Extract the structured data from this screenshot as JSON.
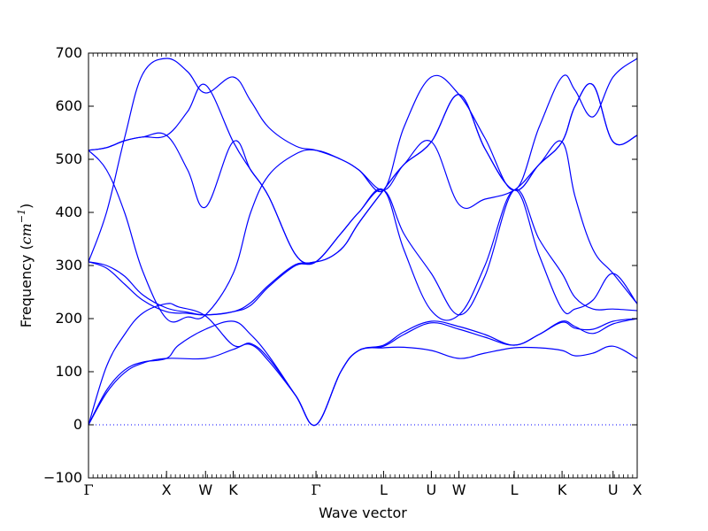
{
  "chart_data": {
    "type": "line",
    "xlabel": "Wave vector",
    "ylabel_prefix": "Frequency (",
    "ylabel_unit": "cm",
    "ylabel_exp": "−1",
    "ylabel_suffix": ")",
    "ylim": [
      -100,
      700
    ],
    "yticks": [
      -100,
      0,
      100,
      200,
      300,
      400,
      500,
      600,
      700
    ],
    "ytick_labels": [
      "−100",
      "0",
      "100",
      "200",
      "300",
      "400",
      "500",
      "600",
      "700"
    ],
    "xlim": [
      0,
      6.09
    ],
    "high_symmetry_points": [
      {
        "label": "Γ",
        "x": 0
      },
      {
        "label": "X",
        "x": 0.866
      },
      {
        "label": "W",
        "x": 1.299
      },
      {
        "label": "K",
        "x": 1.606
      },
      {
        "label": "Γ",
        "x": 2.525
      },
      {
        "label": "L",
        "x": 3.275
      },
      {
        "label": "U",
        "x": 3.805
      },
      {
        "label": "W",
        "x": 4.112
      },
      {
        "label": "L",
        "x": 4.725
      },
      {
        "label": "K",
        "x": 5.256
      },
      {
        "label": "U",
        "x": 5.822
      },
      {
        "label": "X",
        "x": 6.09
      }
    ],
    "zero_line": 0,
    "line_color": "#0000ff",
    "series": [
      {
        "values": [
          [
            0,
            0
          ],
          [
            0.2,
            60
          ],
          [
            0.4,
            98
          ],
          [
            0.6,
            116
          ],
          [
            0.866,
            125
          ],
          [
            1.299,
            125
          ],
          [
            1.606,
            142
          ],
          [
            1.8,
            151
          ],
          [
            2.0,
            120
          ],
          [
            2.3,
            55
          ],
          [
            2.525,
            0
          ],
          [
            2.8,
            100
          ],
          [
            3.0,
            140
          ],
          [
            3.275,
            145
          ],
          [
            3.5,
            146
          ],
          [
            3.805,
            140
          ],
          [
            4.112,
            125
          ],
          [
            4.4,
            135
          ],
          [
            4.725,
            145
          ],
          [
            5.0,
            145
          ],
          [
            5.256,
            140
          ],
          [
            5.4,
            130
          ],
          [
            5.6,
            135
          ],
          [
            5.822,
            148
          ],
          [
            6.09,
            125
          ]
        ]
      },
      {
        "values": [
          [
            0,
            0
          ],
          [
            0.2,
            65
          ],
          [
            0.4,
            103
          ],
          [
            0.6,
            118
          ],
          [
            0.866,
            125
          ],
          [
            1.0,
            150
          ],
          [
            1.299,
            180
          ],
          [
            1.606,
            195
          ],
          [
            1.8,
            170
          ],
          [
            2.0,
            130
          ],
          [
            2.3,
            55
          ],
          [
            2.525,
            0
          ],
          [
            2.8,
            100
          ],
          [
            3.0,
            140
          ],
          [
            3.275,
            148
          ],
          [
            3.5,
            170
          ],
          [
            3.805,
            192
          ],
          [
            4.112,
            180
          ],
          [
            4.4,
            165
          ],
          [
            4.725,
            150
          ],
          [
            5.0,
            170
          ],
          [
            5.256,
            195
          ],
          [
            5.4,
            185
          ],
          [
            5.6,
            172
          ],
          [
            5.822,
            190
          ],
          [
            6.09,
            200
          ]
        ]
      },
      {
        "values": [
          [
            0,
            0
          ],
          [
            0.2,
            110
          ],
          [
            0.4,
            170
          ],
          [
            0.6,
            210
          ],
          [
            0.866,
            228
          ],
          [
            1.0,
            222
          ],
          [
            1.299,
            205
          ],
          [
            1.606,
            150
          ],
          [
            1.8,
            153
          ],
          [
            2.0,
            125
          ],
          [
            2.3,
            55
          ],
          [
            2.525,
            0
          ],
          [
            2.8,
            100
          ],
          [
            3.0,
            140
          ],
          [
            3.275,
            150
          ],
          [
            3.5,
            175
          ],
          [
            3.805,
            195
          ],
          [
            4.112,
            185
          ],
          [
            4.4,
            170
          ],
          [
            4.725,
            150
          ],
          [
            5.0,
            170
          ],
          [
            5.256,
            193
          ],
          [
            5.4,
            182
          ],
          [
            5.6,
            180
          ],
          [
            5.822,
            195
          ],
          [
            6.09,
            200
          ]
        ]
      },
      {
        "values": [
          [
            0,
            307
          ],
          [
            0.2,
            295
          ],
          [
            0.4,
            265
          ],
          [
            0.6,
            235
          ],
          [
            0.866,
            213
          ],
          [
            1.1,
            210
          ],
          [
            1.299,
            207
          ],
          [
            1.606,
            213
          ],
          [
            1.8,
            225
          ],
          [
            2.0,
            260
          ],
          [
            2.3,
            300
          ],
          [
            2.525,
            307
          ],
          [
            2.8,
            360
          ],
          [
            3.0,
            400
          ],
          [
            3.275,
            442
          ],
          [
            3.5,
            360
          ],
          [
            3.805,
            285
          ],
          [
            4.112,
            207
          ],
          [
            4.4,
            280
          ],
          [
            4.725,
            442
          ],
          [
            5.0,
            350
          ],
          [
            5.256,
            285
          ],
          [
            5.4,
            240
          ],
          [
            5.6,
            218
          ],
          [
            5.822,
            218
          ],
          [
            6.09,
            215
          ]
        ]
      },
      {
        "values": [
          [
            0,
            307
          ],
          [
            0.2,
            300
          ],
          [
            0.4,
            280
          ],
          [
            0.6,
            245
          ],
          [
            0.866,
            220
          ],
          [
            1.1,
            212
          ],
          [
            1.299,
            207
          ],
          [
            1.606,
            213
          ],
          [
            1.8,
            230
          ],
          [
            2.0,
            263
          ],
          [
            2.3,
            302
          ],
          [
            2.525,
            307
          ],
          [
            2.8,
            360
          ],
          [
            3.0,
            400
          ],
          [
            3.275,
            442
          ],
          [
            3.5,
            330
          ],
          [
            3.805,
            215
          ],
          [
            4.112,
            207
          ],
          [
            4.4,
            300
          ],
          [
            4.725,
            442
          ],
          [
            5.0,
            320
          ],
          [
            5.256,
            218
          ],
          [
            5.4,
            218
          ],
          [
            5.6,
            235
          ],
          [
            5.822,
            285
          ],
          [
            6.09,
            228
          ]
        ]
      },
      {
        "values": [
          [
            0,
            517
          ],
          [
            0.2,
            480
          ],
          [
            0.4,
            400
          ],
          [
            0.6,
            290
          ],
          [
            0.866,
            200
          ],
          [
            1.1,
            203
          ],
          [
            1.299,
            207
          ],
          [
            1.606,
            285
          ],
          [
            1.8,
            400
          ],
          [
            2.0,
            470
          ],
          [
            2.3,
            510
          ],
          [
            2.525,
            517
          ],
          [
            2.8,
            500
          ],
          [
            3.0,
            480
          ],
          [
            3.275,
            442
          ],
          [
            3.5,
            490
          ],
          [
            3.805,
            533
          ],
          [
            4.112,
            415
          ],
          [
            4.4,
            425
          ],
          [
            4.725,
            442
          ],
          [
            5.0,
            490
          ],
          [
            5.256,
            533
          ],
          [
            5.4,
            430
          ],
          [
            5.6,
            330
          ],
          [
            5.822,
            285
          ],
          [
            6.09,
            228
          ]
        ]
      },
      {
        "values": [
          [
            0,
            517
          ],
          [
            0.2,
            522
          ],
          [
            0.4,
            535
          ],
          [
            0.6,
            542
          ],
          [
            0.866,
            545
          ],
          [
            1.1,
            480
          ],
          [
            1.299,
            410
          ],
          [
            1.606,
            533
          ],
          [
            1.8,
            480
          ],
          [
            2.0,
            430
          ],
          [
            2.3,
            320
          ],
          [
            2.525,
            307
          ],
          [
            2.8,
            330
          ],
          [
            3.0,
            380
          ],
          [
            3.275,
            442
          ],
          [
            3.5,
            490
          ],
          [
            3.805,
            533
          ],
          [
            4.112,
            622
          ],
          [
            4.4,
            520
          ],
          [
            4.725,
            442
          ],
          [
            5.0,
            490
          ],
          [
            5.256,
            533
          ],
          [
            5.4,
            600
          ],
          [
            5.6,
            640
          ],
          [
            5.822,
            533
          ],
          [
            6.09,
            545
          ]
        ]
      },
      {
        "values": [
          [
            0,
            517
          ],
          [
            0.2,
            522
          ],
          [
            0.4,
            535
          ],
          [
            0.6,
            542
          ],
          [
            0.866,
            545
          ],
          [
            1.1,
            590
          ],
          [
            1.299,
            640
          ],
          [
            1.606,
            533
          ],
          [
            1.8,
            480
          ],
          [
            2.0,
            430
          ],
          [
            2.3,
            320
          ],
          [
            2.525,
            307
          ],
          [
            2.8,
            330
          ],
          [
            3.0,
            380
          ],
          [
            3.275,
            442
          ],
          [
            3.5,
            490
          ],
          [
            3.805,
            533
          ],
          [
            4.112,
            622
          ],
          [
            4.4,
            520
          ],
          [
            4.725,
            442
          ],
          [
            5.0,
            490
          ],
          [
            5.256,
            533
          ],
          [
            5.4,
            600
          ],
          [
            5.6,
            640
          ],
          [
            5.822,
            533
          ],
          [
            6.09,
            545
          ]
        ]
      },
      {
        "values": [
          [
            0,
            307
          ],
          [
            0.2,
            400
          ],
          [
            0.4,
            540
          ],
          [
            0.6,
            660
          ],
          [
            0.866,
            690
          ],
          [
            1.1,
            665
          ],
          [
            1.299,
            625
          ],
          [
            1.606,
            655
          ],
          [
            1.8,
            610
          ],
          [
            2.0,
            560
          ],
          [
            2.3,
            525
          ],
          [
            2.525,
            517
          ],
          [
            2.8,
            500
          ],
          [
            3.0,
            480
          ],
          [
            3.275,
            442
          ],
          [
            3.5,
            560
          ],
          [
            3.805,
            655
          ],
          [
            4.112,
            622
          ],
          [
            4.4,
            540
          ],
          [
            4.725,
            442
          ],
          [
            5.0,
            560
          ],
          [
            5.256,
            655
          ],
          [
            5.4,
            630
          ],
          [
            5.6,
            580
          ],
          [
            5.822,
            655
          ],
          [
            6.09,
            690
          ]
        ]
      }
    ]
  }
}
